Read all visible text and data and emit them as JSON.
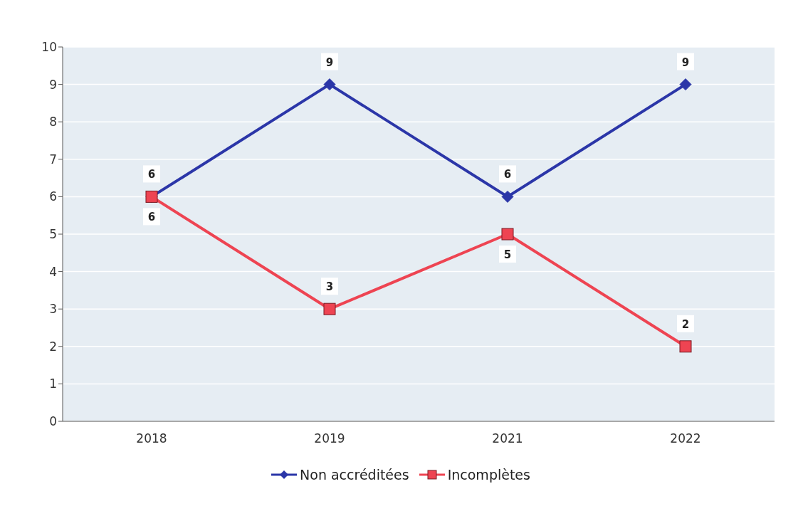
{
  "chart_data": {
    "type": "line",
    "categories": [
      "2018",
      "2019",
      "2021",
      "2022"
    ],
    "series": [
      {
        "name": "Non accréditées",
        "color": "#2b36a8",
        "values": [
          6,
          9,
          6,
          9
        ],
        "marker": "diamond"
      },
      {
        "name": "Incomplètes",
        "color": "#ee4452",
        "values": [
          6,
          3,
          5,
          2
        ],
        "marker": "square"
      }
    ],
    "ylim": [
      0,
      10
    ],
    "yticks": [
      0,
      1,
      2,
      3,
      4,
      5,
      6,
      7,
      8,
      9,
      10
    ],
    "grid": "y",
    "legend": "bottom",
    "data_labels": true,
    "line_style": "solid"
  }
}
